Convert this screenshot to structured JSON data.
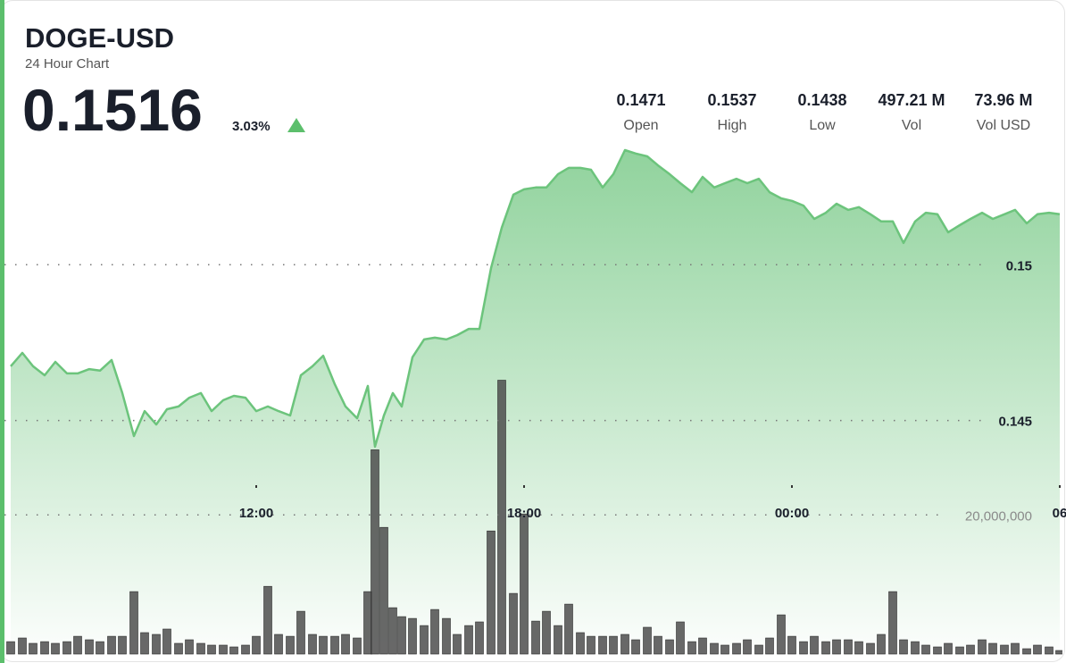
{
  "header": {
    "symbol": "DOGE-USD",
    "subtitle": "24 Hour Chart",
    "price": "0.1516",
    "change": "3.03%"
  },
  "stats": [
    {
      "value": "0.1471",
      "label": "Open"
    },
    {
      "value": "0.1537",
      "label": "High"
    },
    {
      "value": "0.1438",
      "label": "Low"
    },
    {
      "value": "497.21 M",
      "label": "Vol"
    },
    {
      "value": "73.96 M",
      "label": "Vol USD"
    }
  ],
  "chart_data": {
    "type": "line",
    "x": [
      6.5,
      6.76,
      7.0,
      7.26,
      7.5,
      7.76,
      8.0,
      8.26,
      8.5,
      8.76,
      9.0,
      9.26,
      9.5,
      9.76,
      10.0,
      10.26,
      10.5,
      10.76,
      11.0,
      11.26,
      11.5,
      11.76,
      12.0,
      12.26,
      12.5,
      12.76,
      13.0,
      13.26,
      13.5,
      13.76,
      14.0,
      14.26,
      14.5,
      14.66,
      14.86,
      15.06,
      15.26,
      15.5,
      15.76,
      16.0,
      16.26,
      16.5,
      16.76,
      17.0,
      17.26,
      17.5,
      17.76,
      18.0,
      18.26,
      18.5,
      18.76,
      19.0,
      19.26,
      19.5,
      19.76,
      20.0,
      20.26,
      20.5,
      20.76,
      21.0,
      21.26,
      21.5,
      21.76,
      22.0,
      22.26,
      22.5,
      22.76,
      23.0,
      23.26,
      23.5,
      23.76,
      24.0,
      24.26,
      24.5,
      24.76,
      25.0,
      25.26,
      25.5,
      25.76,
      26.0,
      26.26,
      26.5,
      26.76,
      27.0,
      27.26,
      27.5,
      27.76,
      28.0,
      28.26,
      28.5,
      28.76,
      29.0,
      29.26,
      29.5,
      29.76,
      30.0
    ],
    "series": [
      {
        "color": "#6cc47c",
        "axis": "y",
        "values": [
          0.14674,
          0.14717,
          0.14674,
          0.14645,
          0.14688,
          0.14651,
          0.14651,
          0.14665,
          0.1466,
          0.14694,
          0.14588,
          0.1445,
          0.1453,
          0.14487,
          0.14536,
          0.14545,
          0.14573,
          0.14588,
          0.1453,
          0.14565,
          0.14579,
          0.14573,
          0.1453,
          0.14545,
          0.1453,
          0.14516,
          0.14645,
          0.14674,
          0.14708,
          0.14616,
          0.14545,
          0.14507,
          0.14611,
          0.14416,
          0.14516,
          0.14588,
          0.14545,
          0.14703,
          0.1476,
          0.14766,
          0.1476,
          0.14774,
          0.14794,
          0.14794,
          0.14989,
          0.15119,
          0.15225,
          0.15242,
          0.15248,
          0.15248,
          0.15291,
          0.15311,
          0.15311,
          0.15305,
          0.15248,
          0.15291,
          0.15368,
          0.15357,
          0.15348,
          0.15319,
          0.15291,
          0.15262,
          0.15233,
          0.15282,
          0.15248,
          0.15262,
          0.15276,
          0.15262,
          0.15276,
          0.15233,
          0.15213,
          0.15205,
          0.1519,
          0.15147,
          0.15167,
          0.15196,
          0.15176,
          0.15185,
          0.15162,
          0.15139,
          0.15139,
          0.1507,
          0.15139,
          0.15167,
          0.15162,
          0.15104,
          0.15127,
          0.15147,
          0.15167,
          0.15147,
          0.15162,
          0.15176,
          0.15133,
          0.15162,
          0.15167,
          0.15162
        ]
      },
      {
        "color": "#4d4d4d",
        "axis": "y2",
        "values": [
          1790000,
          2310000,
          1540000,
          1790000,
          1540000,
          1790000,
          2560000,
          2050000,
          1790000,
          2560000,
          2560000,
          8970000,
          3080000,
          2820000,
          3590000,
          1540000,
          2050000,
          1540000,
          1280000,
          1280000,
          1030000,
          1280000,
          2560000,
          9740000,
          2820000,
          2560000,
          6150000,
          2820000,
          2560000,
          2560000,
          2820000,
          2310000,
          8970000,
          29360000,
          18210000,
          6670000,
          5380000,
          5130000,
          4100000,
          6410000,
          5130000,
          2820000,
          4100000,
          4620000,
          17690000,
          39360000,
          8720000,
          20130000,
          4740000,
          6150000,
          4100000,
          7180000,
          3080000,
          2560000,
          2560000,
          2560000,
          2820000,
          2050000,
          3850000,
          2560000,
          2050000,
          4620000,
          1790000,
          2310000,
          1540000,
          1280000,
          1540000,
          2050000,
          1280000,
          2310000,
          5640000,
          2560000,
          1790000,
          2560000,
          1790000,
          2050000,
          2050000,
          1790000,
          1540000,
          2820000,
          8970000,
          2050000,
          1790000,
          1280000,
          1030000,
          1540000,
          1030000,
          1280000,
          2050000,
          1540000,
          1280000,
          1540000,
          770000,
          1280000,
          1030000,
          510000
        ]
      }
    ],
    "xlim": [
      6.36,
      30.06
    ],
    "xticks": [
      {
        "value": 12,
        "label": "12:00"
      },
      {
        "value": 18,
        "label": "18:00"
      },
      {
        "value": 24,
        "label": "00:00"
      },
      {
        "value": 30,
        "label": "06"
      }
    ],
    "ylim": [
      0.1375,
      0.1585
    ],
    "yticks": [
      0.15,
      0.145
    ],
    "y2lim": [
      0,
      94000000
    ],
    "y2ticks": [
      {
        "value": 20000000,
        "label": "20,000,000"
      }
    ],
    "grid": true
  }
}
